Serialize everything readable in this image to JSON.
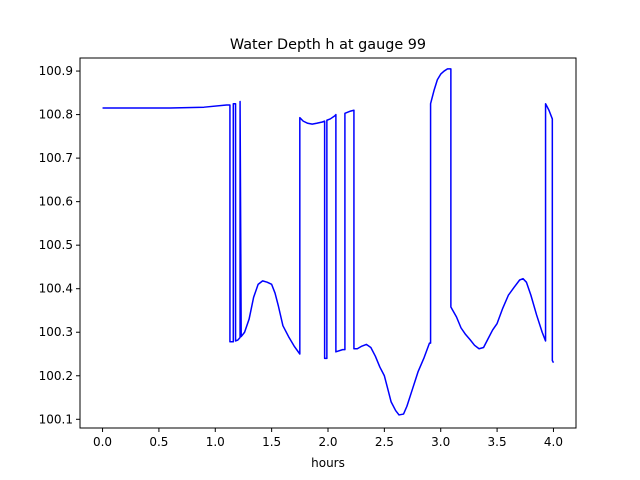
{
  "chart_data": {
    "type": "line",
    "title": "Water Depth h at gauge 99",
    "xlabel": "hours",
    "ylabel": "",
    "xlim": [
      -0.2,
      4.2
    ],
    "ylim": [
      100.08,
      100.93
    ],
    "xticks": [
      0.0,
      0.5,
      1.0,
      1.5,
      2.0,
      2.5,
      3.0,
      3.5,
      4.0
    ],
    "xtick_labels": [
      "0.0",
      "0.5",
      "1.0",
      "1.5",
      "2.0",
      "2.5",
      "3.0",
      "3.5",
      "4.0"
    ],
    "yticks": [
      100.1,
      100.2,
      100.3,
      100.4,
      100.5,
      100.6,
      100.7,
      100.8,
      100.9
    ],
    "ytick_labels": [
      "100.1",
      "100.2",
      "100.3",
      "100.4",
      "100.5",
      "100.6",
      "100.7",
      "100.8",
      "100.9"
    ],
    "grid": false,
    "legend": "none",
    "series": [
      {
        "color": "#0000ff",
        "x": [
          0.0,
          0.3,
          0.6,
          0.9,
          1.1,
          1.13,
          1.13,
          1.16,
          1.16,
          1.18,
          1.18,
          1.2,
          1.22,
          1.22,
          1.23,
          1.26,
          1.3,
          1.34,
          1.38,
          1.42,
          1.46,
          1.5,
          1.53,
          1.56,
          1.6,
          1.65,
          1.7,
          1.75,
          1.75,
          1.78,
          1.82,
          1.86,
          1.9,
          1.95,
          1.97,
          1.97,
          1.99,
          1.99,
          2.02,
          2.06,
          2.07,
          2.07,
          2.13,
          2.15,
          2.15,
          2.2,
          2.23,
          2.23,
          2.26,
          2.3,
          2.34,
          2.38,
          2.42,
          2.46,
          2.5,
          2.53,
          2.56,
          2.6,
          2.63,
          2.67,
          2.7,
          2.75,
          2.8,
          2.85,
          2.9,
          2.91,
          2.91,
          2.94,
          2.97,
          3.0,
          3.03,
          3.06,
          3.09,
          3.09,
          3.14,
          3.18,
          3.22,
          3.26,
          3.3,
          3.34,
          3.38,
          3.42,
          3.46,
          3.5,
          3.55,
          3.6,
          3.65,
          3.7,
          3.73,
          3.76,
          3.8,
          3.85,
          3.9,
          3.93,
          3.93,
          3.96,
          3.99,
          3.99,
          4.0
        ],
        "y": [
          100.815,
          100.815,
          100.815,
          100.817,
          100.822,
          100.822,
          100.278,
          100.278,
          100.825,
          100.825,
          100.28,
          100.282,
          100.288,
          100.83,
          100.29,
          100.3,
          100.33,
          100.38,
          100.41,
          100.418,
          100.415,
          100.41,
          100.39,
          100.36,
          100.315,
          100.29,
          100.268,
          100.25,
          100.793,
          100.785,
          100.78,
          100.778,
          100.78,
          100.783,
          100.785,
          100.24,
          100.24,
          100.787,
          100.79,
          100.797,
          100.8,
          100.255,
          100.26,
          100.26,
          100.803,
          100.808,
          100.81,
          100.262,
          100.262,
          100.268,
          100.272,
          100.265,
          100.245,
          100.22,
          100.2,
          100.17,
          100.14,
          100.12,
          100.11,
          100.112,
          100.13,
          100.17,
          100.21,
          100.24,
          100.275,
          100.275,
          100.825,
          100.855,
          100.88,
          100.893,
          100.9,
          100.905,
          100.905,
          100.358,
          100.335,
          100.31,
          100.295,
          100.283,
          100.27,
          100.262,
          100.265,
          100.285,
          100.305,
          100.32,
          100.355,
          100.385,
          100.403,
          100.42,
          100.423,
          100.415,
          100.385,
          100.34,
          100.3,
          100.28,
          100.825,
          100.81,
          100.79,
          100.235,
          100.23
        ]
      }
    ]
  }
}
